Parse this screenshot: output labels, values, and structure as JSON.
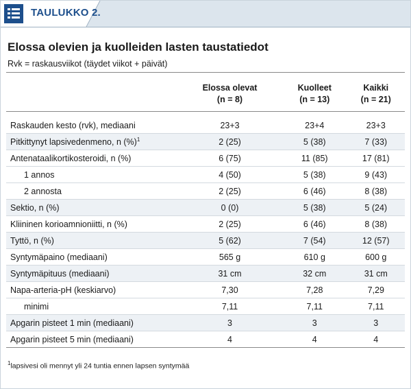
{
  "header": {
    "label": "TAULUKKO 2."
  },
  "title": "Elossa olevien ja kuolleiden lasten taustatiedot",
  "subtitle": "Rvk = raskausviikot (täydet viikot + päivät)",
  "table": {
    "columns": [
      {
        "name": "Elossa olevat",
        "n": "(n = 8)"
      },
      {
        "name": "Kuolleet",
        "n": "(n = 13)"
      },
      {
        "name": "Kaikki",
        "n": "(n = 21)"
      }
    ],
    "rows": [
      {
        "label": "Raskauden kesto (rvk), mediaani",
        "values": [
          "23+3",
          "23+4",
          "23+3"
        ]
      },
      {
        "label": "Pitkittynyt lapsivedenmeno, n (%)",
        "note": "1",
        "shaded": true,
        "values": [
          "2 (25)",
          "5 (38)",
          "7 (33)"
        ]
      },
      {
        "label": "Antenataalikortikosteroidi, n (%)",
        "values": [
          "6 (75)",
          "11 (85)",
          "17 (81)"
        ]
      },
      {
        "label": "1 annos",
        "indent": true,
        "values": [
          "4 (50)",
          "5 (38)",
          "9 (43)"
        ]
      },
      {
        "label": "2 annosta",
        "indent": true,
        "values": [
          "2 (25)",
          "6 (46)",
          "8 (38)"
        ]
      },
      {
        "label": "Sektio, n (%)",
        "shaded": true,
        "values": [
          "0 (0)",
          "5 (38)",
          "5 (24)"
        ]
      },
      {
        "label": "Kliininen korioamnioniitti, n (%)",
        "values": [
          "2 (25)",
          "6 (46)",
          "8 (38)"
        ]
      },
      {
        "label": "Tyttö, n (%)",
        "shaded": true,
        "values": [
          "5 (62)",
          "7 (54)",
          "12 (57)"
        ]
      },
      {
        "label": "Syntymäpaino (mediaani)",
        "values": [
          "565 g",
          "610 g",
          "600 g"
        ]
      },
      {
        "label": "Syntymäpituus (mediaani)",
        "shaded": true,
        "values": [
          "31 cm",
          "32 cm",
          "31 cm"
        ]
      },
      {
        "label": "Napa-arteria-pH (keskiarvo)",
        "values": [
          "7,30",
          "7,28",
          "7,29"
        ]
      },
      {
        "label": "minimi",
        "indent": true,
        "values": [
          "7,11",
          "7,11",
          "7,11"
        ]
      },
      {
        "label": "Apgarin pisteet 1 min (mediaani)",
        "shaded": true,
        "values": [
          "3",
          "3",
          "3"
        ]
      },
      {
        "label": "Apgarin pisteet 5 min (mediaani)",
        "values": [
          "4",
          "4",
          "4"
        ]
      }
    ]
  },
  "footnote": {
    "marker": "1",
    "text": "lapsivesi oli mennyt yli 24 tuntia ennen lapsen syntymää"
  }
}
